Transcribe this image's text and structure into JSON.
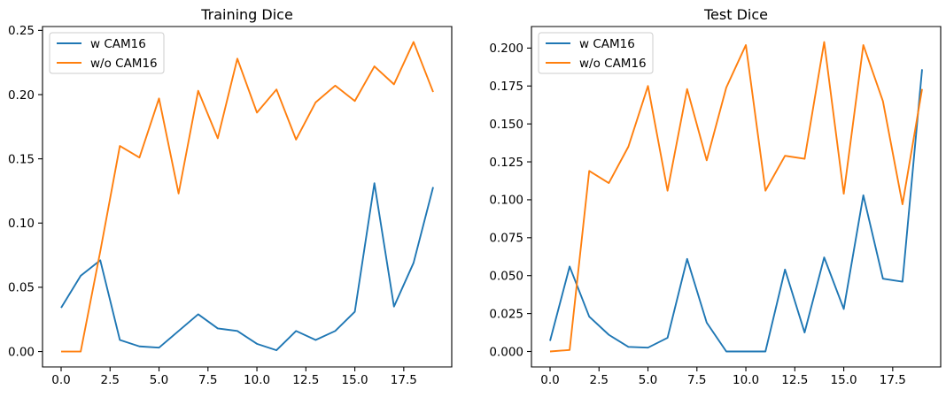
{
  "chart_data": [
    {
      "type": "line",
      "title": "Training Dice",
      "grid": false,
      "legend": "upper-left",
      "xlim": [
        -0.95,
        19.95
      ],
      "ylim": [
        -0.012,
        0.253
      ],
      "xticks": [
        0,
        2.5,
        5,
        7.5,
        10,
        12.5,
        15,
        17.5
      ],
      "xtick_labels": [
        "0.0",
        "2.5",
        "5.0",
        "7.5",
        "10.0",
        "12.5",
        "15.0",
        "17.5"
      ],
      "yticks": [
        0,
        0.05,
        0.1,
        0.15,
        0.2,
        0.25
      ],
      "ytick_labels": [
        "0.00",
        "0.05",
        "0.10",
        "0.15",
        "0.20",
        "0.25"
      ],
      "x": [
        0,
        1,
        2,
        3,
        4,
        5,
        6,
        7,
        8,
        9,
        10,
        11,
        12,
        13,
        14,
        15,
        16,
        17,
        18,
        19
      ],
      "series": [
        {
          "name": "w CAM16",
          "color": "#1f77b4",
          "values": [
            0.034,
            0.059,
            0.071,
            0.009,
            0.004,
            0.003,
            0.016,
            0.029,
            0.018,
            0.016,
            0.006,
            0.001,
            0.016,
            0.009,
            0.016,
            0.031,
            0.131,
            0.035,
            0.069,
            0.128
          ]
        },
        {
          "name": "w/o CAM16",
          "color": "#ff7f0e",
          "values": [
            0.0,
            0.0,
            0.078,
            0.16,
            0.151,
            0.197,
            0.123,
            0.203,
            0.166,
            0.228,
            0.186,
            0.204,
            0.165,
            0.194,
            0.207,
            0.195,
            0.222,
            0.208,
            0.241,
            0.202
          ]
        }
      ]
    },
    {
      "type": "line",
      "title": "Test Dice",
      "grid": false,
      "legend": "upper-left",
      "xlim": [
        -0.95,
        19.95
      ],
      "ylim": [
        -0.0102,
        0.2142
      ],
      "xticks": [
        0,
        2.5,
        5,
        7.5,
        10,
        12.5,
        15,
        17.5
      ],
      "xtick_labels": [
        "0.0",
        "2.5",
        "5.0",
        "7.5",
        "10.0",
        "12.5",
        "15.0",
        "17.5"
      ],
      "yticks": [
        0,
        0.025,
        0.05,
        0.075,
        0.1,
        0.125,
        0.15,
        0.175,
        0.2
      ],
      "ytick_labels": [
        "0.000",
        "0.025",
        "0.050",
        "0.075",
        "0.100",
        "0.125",
        "0.150",
        "0.175",
        "0.200"
      ],
      "x": [
        0,
        1,
        2,
        3,
        4,
        5,
        6,
        7,
        8,
        9,
        10,
        11,
        12,
        13,
        14,
        15,
        16,
        17,
        18,
        19
      ],
      "series": [
        {
          "name": "w CAM16",
          "color": "#1f77b4",
          "values": [
            0.007,
            0.056,
            0.023,
            0.011,
            0.003,
            0.0025,
            0.009,
            0.061,
            0.019,
            0.0,
            0.0,
            0.0,
            0.054,
            0.0125,
            0.062,
            0.028,
            0.103,
            0.048,
            0.046,
            0.186
          ]
        },
        {
          "name": "w/o CAM16",
          "color": "#ff7f0e",
          "values": [
            0.0,
            0.001,
            0.119,
            0.111,
            0.135,
            0.175,
            0.106,
            0.173,
            0.126,
            0.174,
            0.202,
            0.106,
            0.129,
            0.127,
            0.204,
            0.104,
            0.202,
            0.165,
            0.097,
            0.173
          ]
        }
      ]
    }
  ]
}
